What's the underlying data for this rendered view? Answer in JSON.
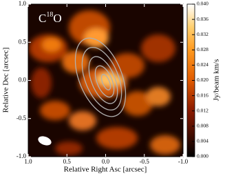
{
  "chart_data": {
    "type": "image",
    "annotation": [
      "C",
      "18",
      "O"
    ],
    "xlabel": "Relative Right Asc [arcsec]",
    "ylabel": "Relative Dec [arcsec]",
    "xlim": [
      1.0,
      -1.0
    ],
    "ylim": [
      -1.0,
      1.0
    ],
    "xticks": [
      {
        "value": 1.0,
        "label": "1.0"
      },
      {
        "value": 0.5,
        "label": "0.5"
      },
      {
        "value": 0.0,
        "label": "0.0"
      },
      {
        "value": -0.5,
        "label": "-0.5"
      },
      {
        "value": -1.0,
        "label": "-1.0"
      }
    ],
    "yticks": [
      {
        "value": 1.0,
        "label": "1.0"
      },
      {
        "value": 0.5,
        "label": "0.5"
      },
      {
        "value": 0.0,
        "label": "0.0"
      },
      {
        "value": -0.5,
        "label": "-0.5"
      },
      {
        "value": -1.0,
        "label": "-1.0"
      }
    ],
    "colorbar": {
      "label": "Jy/beam km/s",
      "lim": [
        0.0,
        0.04
      ],
      "ticks": [
        {
          "value": 0.0,
          "label": "0.000"
        },
        {
          "value": 0.004,
          "label": "0.004"
        },
        {
          "value": 0.008,
          "label": "0.008"
        },
        {
          "value": 0.012,
          "label": "0.012"
        },
        {
          "value": 0.016,
          "label": "0.016"
        },
        {
          "value": 0.02,
          "label": "0.020"
        },
        {
          "value": 0.024,
          "label": "0.024"
        },
        {
          "value": 0.028,
          "label": "0.028"
        },
        {
          "value": 0.032,
          "label": "0.032"
        },
        {
          "value": 0.036,
          "label": "0.036"
        },
        {
          "value": 0.04,
          "label": "0.040"
        }
      ]
    }
  }
}
